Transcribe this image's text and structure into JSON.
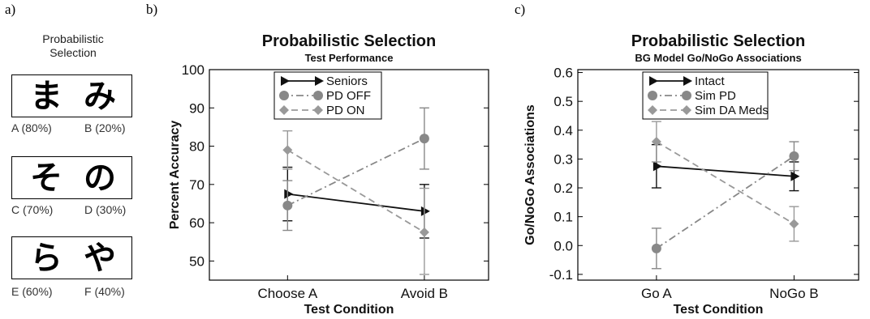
{
  "panel_a": {
    "letter": "a)",
    "title_line1": "Probabilistic",
    "title_line2": "Selection",
    "pairs": [
      {
        "glyph_left": "ま",
        "glyph_right": "み",
        "label_left": "A (80%)",
        "label_right": "B (20%)"
      },
      {
        "glyph_left": "そ",
        "glyph_right": "の",
        "label_left": "C (70%)",
        "label_right": "D (30%)"
      },
      {
        "glyph_left": "ら",
        "glyph_right": "や",
        "label_left": "E (60%)",
        "label_right": "F (40%)"
      }
    ]
  },
  "chart_data": [
    {
      "panel": "b)",
      "type": "line",
      "title": "Probabilistic Selection",
      "subtitle": "Test Performance",
      "xlabel": "Test Condition",
      "ylabel": "Percent Accuracy",
      "categories": [
        "Choose A",
        "Avoid B"
      ],
      "ylim": [
        45,
        100
      ],
      "yticks": [
        50,
        60,
        70,
        80,
        90,
        100
      ],
      "legend_position": "top-center",
      "series": [
        {
          "name": "Seniors",
          "values": [
            67.5,
            63.0
          ],
          "err_low": [
            60.5,
            56.0
          ],
          "err_high": [
            74.5,
            70.0
          ],
          "color": "#111111",
          "marker": "triangle-right",
          "dash": "solid"
        },
        {
          "name": "PD OFF",
          "values": [
            64.5,
            82.0
          ],
          "err_low": [
            58.0,
            74.0
          ],
          "err_high": [
            71.0,
            90.0
          ],
          "color": "#888888",
          "marker": "circle",
          "dash": "dashdot"
        },
        {
          "name": "PD ON",
          "values": [
            79.0,
            57.5
          ],
          "err_low": [
            74.0,
            46.5
          ],
          "err_high": [
            84.0,
            69.0
          ],
          "color": "#999999",
          "marker": "diamond",
          "dash": "dashed"
        }
      ]
    },
    {
      "panel": "c)",
      "type": "line",
      "title": "Probabilistic Selection",
      "subtitle": "BG Model Go/NoGo Associations",
      "xlabel": "Test Condition",
      "ylabel": "Go/NoGo Associations",
      "categories": [
        "Go A",
        "NoGo B"
      ],
      "ylim": [
        -0.12,
        0.61
      ],
      "yticks": [
        -0.1,
        0.0,
        0.1,
        0.2,
        0.3,
        0.4,
        0.5,
        0.6
      ],
      "ytick_labels": [
        "-0.1",
        "0.0",
        "0.1",
        "0.2",
        "0.3",
        "0.4",
        "0.5",
        "0.6"
      ],
      "legend_position": "top-center",
      "series": [
        {
          "name": "Intact",
          "values": [
            0.275,
            0.24
          ],
          "err_low": [
            0.2,
            0.19
          ],
          "err_high": [
            0.35,
            0.29
          ],
          "color": "#111111",
          "marker": "triangle-right",
          "dash": "solid"
        },
        {
          "name": "Sim PD",
          "values": [
            -0.01,
            0.31
          ],
          "err_low": [
            -0.08,
            0.26
          ],
          "err_high": [
            0.06,
            0.36
          ],
          "color": "#888888",
          "marker": "circle",
          "dash": "dashdot"
        },
        {
          "name": "Sim DA Meds",
          "values": [
            0.36,
            0.075
          ],
          "err_low": [
            0.29,
            0.015
          ],
          "err_high": [
            0.43,
            0.135
          ],
          "color": "#999999",
          "marker": "diamond",
          "dash": "dashed"
        }
      ]
    }
  ]
}
